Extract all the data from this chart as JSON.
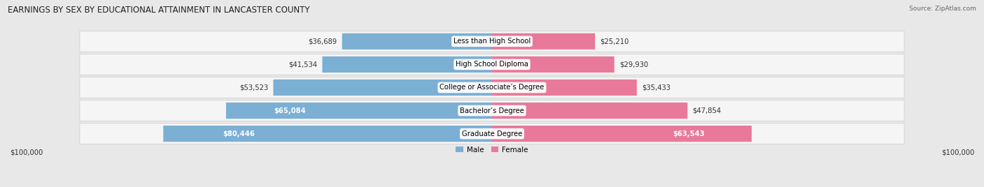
{
  "title": "EARNINGS BY SEX BY EDUCATIONAL ATTAINMENT IN LANCASTER COUNTY",
  "source": "Source: ZipAtlas.com",
  "categories": [
    "Less than High School",
    "High School Diploma",
    "College or Associate’s Degree",
    "Bachelor’s Degree",
    "Graduate Degree"
  ],
  "male_values": [
    36689,
    41534,
    53523,
    65084,
    80446
  ],
  "female_values": [
    25210,
    29930,
    35433,
    47854,
    63543
  ],
  "max_val": 100000,
  "male_color": "#7bafd4",
  "female_color": "#e8799a",
  "male_label": "Male",
  "female_label": "Female",
  "bg_color": "#e8e8e8",
  "row_bg_color": "#f5f5f5",
  "title_fontsize": 8.5,
  "value_fontsize": 7.2,
  "cat_fontsize": 7.2,
  "source_fontsize": 6.5,
  "legend_fontsize": 7.5,
  "male_inside_threshold": 55000,
  "female_inside_threshold": 55000
}
